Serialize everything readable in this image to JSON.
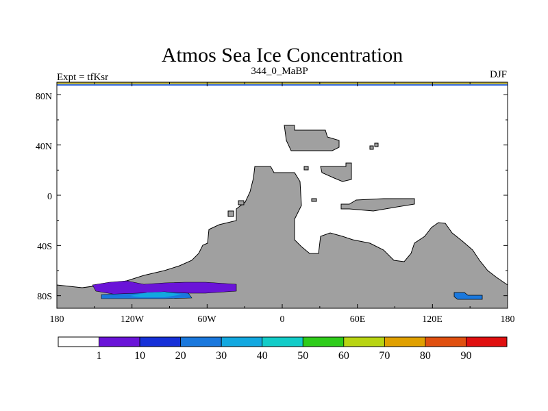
{
  "title": "Atmos Sea Ice Concentration",
  "subtitle_left": "Expt = tfKsr",
  "subtitle_center": "344_0_MaBP",
  "subtitle_right": "DJF",
  "lat_ticks": [
    "80N",
    "40N",
    "0",
    "40S",
    "80S"
  ],
  "lon_ticks": [
    "180",
    "120W",
    "60W",
    "0",
    "60E",
    "120E",
    "180"
  ],
  "colorbar": {
    "labels": [
      "1",
      "10",
      "20",
      "30",
      "40",
      "50",
      "60",
      "70",
      "80",
      "90"
    ],
    "colors": [
      "#ffffff",
      "#6a14d8",
      "#1630d8",
      "#1a78dd",
      "#12a8e0",
      "#12ccc8",
      "#2ecc1a",
      "#b8d412",
      "#e0a000",
      "#e05010",
      "#e01010"
    ]
  },
  "colors": {
    "land": "#a0a0a0",
    "top_band": "#b8b040",
    "top_line": "#3a6ee0"
  }
}
